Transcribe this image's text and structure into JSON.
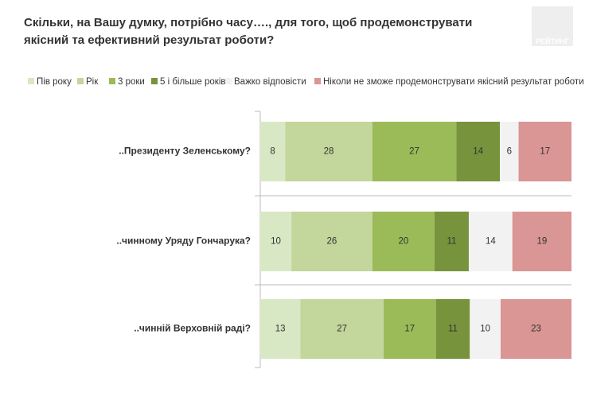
{
  "chart_data": {
    "type": "stacked-bar",
    "title": "Скільки, на Вашу думку, потрібно часу…., для того, щоб продемонструвати якісний та ефективний результат роботи?",
    "logo": "РЕЙТИНГ",
    "categories": [
      "..Президенту Зеленському?",
      "..чинному Уряду Гончарука?",
      "..чинній Верховній раді?"
    ],
    "series": [
      {
        "name": "Пів року",
        "color": "#d9e8c4",
        "values": [
          8,
          10,
          13
        ]
      },
      {
        "name": "Рік",
        "color": "#c3d69b",
        "values": [
          28,
          26,
          27
        ]
      },
      {
        "name": "3 роки",
        "color": "#9bbb59",
        "values": [
          27,
          20,
          17
        ]
      },
      {
        "name": "5 і більше років",
        "color": "#77933c",
        "values": [
          14,
          11,
          11
        ]
      },
      {
        "name": "Важко відповісти",
        "color": "#f2f2f2",
        "values": [
          6,
          14,
          10
        ]
      },
      {
        "name": "Ніколи не зможе продемонструвати якісний результат роботи",
        "color": "#d99694",
        "values": [
          17,
          19,
          23
        ]
      }
    ]
  }
}
